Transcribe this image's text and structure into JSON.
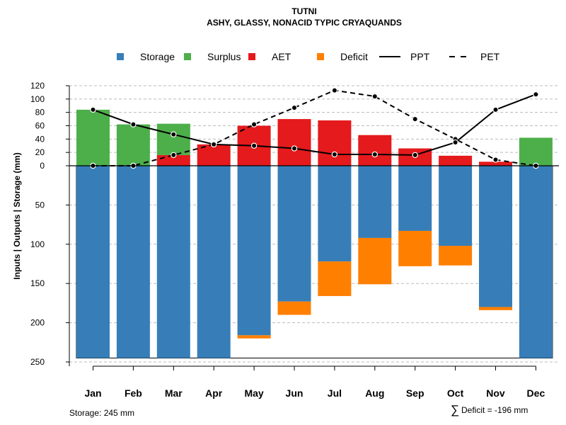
{
  "chart_data": {
    "type": "bar",
    "title": "TUTNI",
    "subtitle": "ASHY, GLASSY, NONACID TYPIC CRYAQUANDS",
    "ylabel": "Inputs | Outputs | Storage     (mm)",
    "categories": [
      "Jan",
      "Feb",
      "Mar",
      "Apr",
      "May",
      "Jun",
      "Jul",
      "Aug",
      "Sep",
      "Oct",
      "Nov",
      "Dec"
    ],
    "upper_ticks": [
      0,
      20,
      40,
      60,
      80,
      100,
      120
    ],
    "lower_ticks": [
      50,
      100,
      150,
      200,
      250
    ],
    "upper_ylim": [
      0,
      120
    ],
    "lower_ylim": [
      0,
      250
    ],
    "legend": [
      {
        "label": "Storage",
        "kind": "box",
        "color": "#377EB8"
      },
      {
        "label": "Surplus",
        "kind": "box",
        "color": "#4DAF4A"
      },
      {
        "label": "AET",
        "kind": "box",
        "color": "#E41A1C"
      },
      {
        "label": "Deficit",
        "kind": "box",
        "color": "#FF7F00"
      },
      {
        "label": "PPT",
        "kind": "solid",
        "color": "#000000"
      },
      {
        "label": "PET",
        "kind": "dashed",
        "color": "#000000"
      }
    ],
    "series": [
      {
        "name": "Surplus",
        "color": "#4DAF4A",
        "values": [
          84,
          62,
          47,
          0,
          0,
          0,
          0,
          0,
          0,
          0,
          0,
          42
        ]
      },
      {
        "name": "AET",
        "color": "#E41A1C",
        "values": [
          0,
          0,
          16,
          32,
          60,
          70,
          68,
          46,
          26,
          15,
          6,
          0
        ]
      },
      {
        "name": "Storage",
        "color": "#377EB8",
        "values": [
          245,
          245,
          245,
          245,
          216,
          173,
          122,
          92,
          83,
          102,
          180,
          245
        ]
      },
      {
        "name": "Deficit",
        "color": "#FF7F00",
        "values": [
          0,
          0,
          0,
          0,
          4,
          17,
          44,
          59,
          45,
          25,
          4,
          0
        ]
      },
      {
        "name": "PPT",
        "color": "#000000",
        "values": [
          84,
          62,
          47,
          32,
          30,
          26,
          17,
          17,
          16,
          35,
          84,
          107
        ]
      },
      {
        "name": "PET",
        "color": "#000000",
        "values": [
          0,
          0,
          16,
          32,
          62,
          87,
          113,
          104,
          70,
          40,
          9,
          0
        ]
      }
    ],
    "storage_capacity": 245,
    "grid": true
  },
  "footer": {
    "storage_text": "Storage: 245 mm",
    "sum_symbol": "∑",
    "deficit_text": "Deficit = -196 mm"
  }
}
